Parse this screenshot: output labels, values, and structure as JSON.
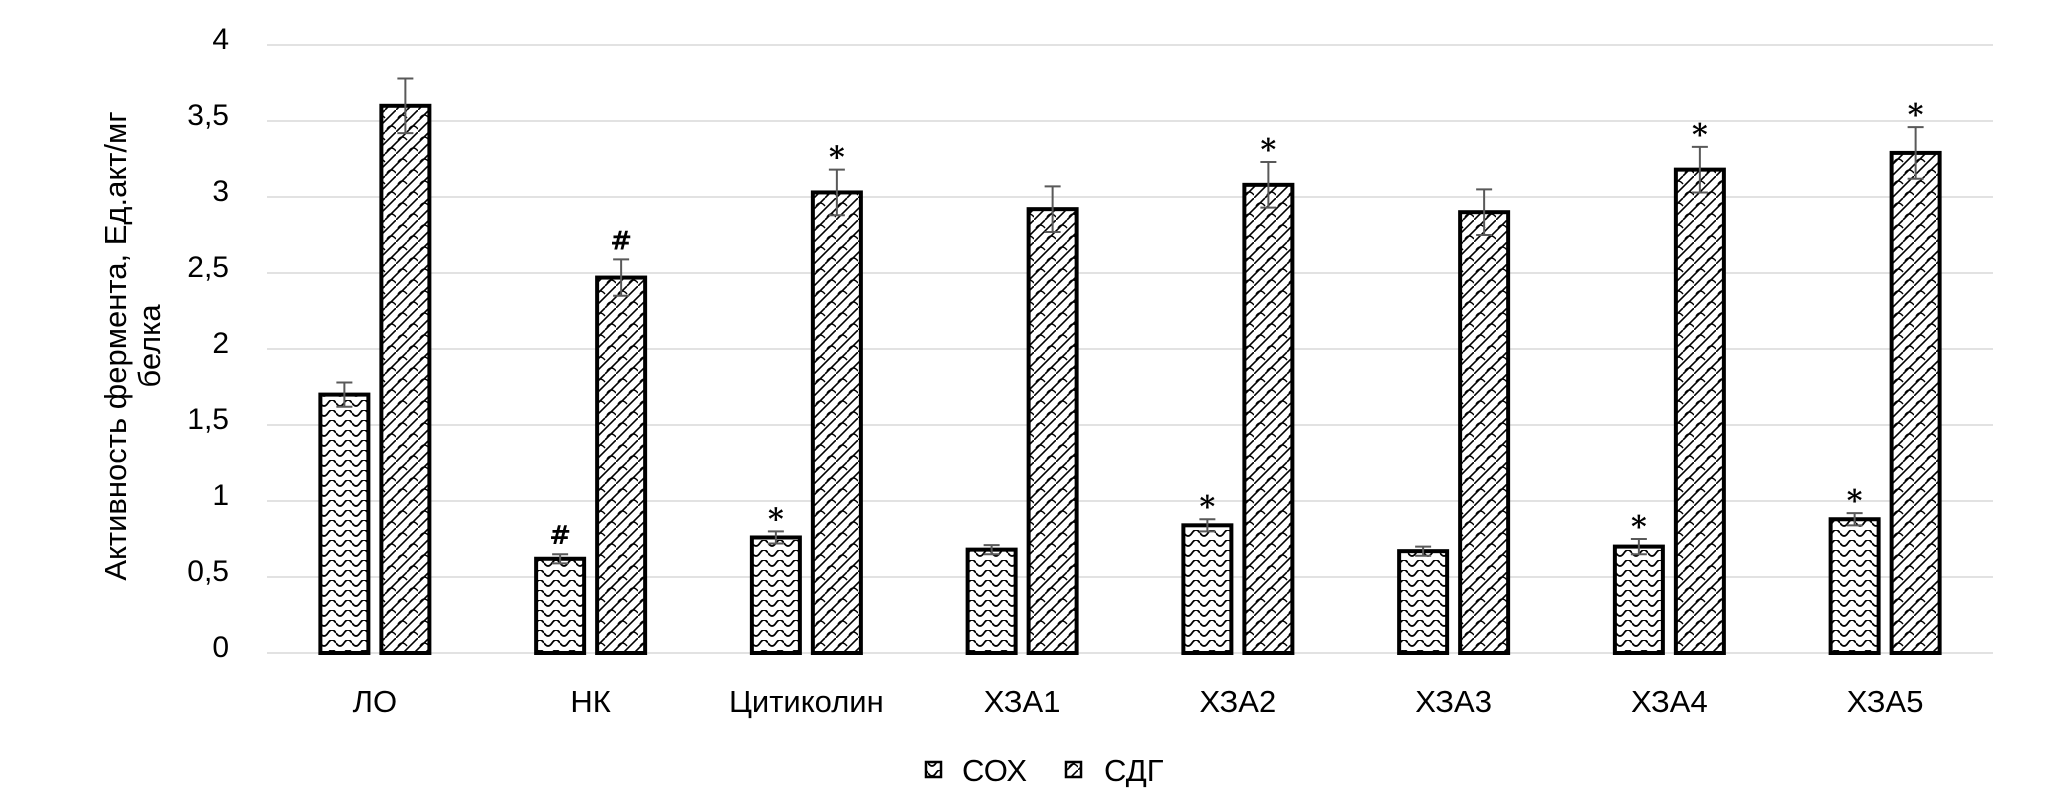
{
  "chart_data": {
    "type": "bar",
    "title": "",
    "xlabel": "",
    "ylabel_lines": [
      "Активность фермента, Ед.акт/мг",
      "белка"
    ],
    "ylim": [
      0,
      4
    ],
    "yticks": [
      0,
      0.5,
      1,
      1.5,
      2,
      2.5,
      3,
      3.5,
      4
    ],
    "ytick_labels": [
      "0",
      "0,5",
      "1",
      "1,5",
      "2",
      "2,5",
      "3",
      "3,5",
      "4"
    ],
    "grid": true,
    "legend_position": "bottom-center",
    "categories": [
      "ЛО",
      "НК",
      "Цитиколин",
      "ХЗА1",
      "ХЗА2",
      "ХЗА3",
      "ХЗА4",
      "ХЗА5"
    ],
    "series": [
      {
        "name": "СОХ",
        "pattern": "wave",
        "values": [
          1.7,
          0.62,
          0.76,
          0.68,
          0.84,
          0.67,
          0.7,
          0.88
        ],
        "errors": [
          0.08,
          0.03,
          0.04,
          0.03,
          0.04,
          0.03,
          0.05,
          0.04
        ],
        "markers": [
          "",
          "#",
          "*",
          "",
          "*",
          "",
          "*",
          "*"
        ]
      },
      {
        "name": "СДГ",
        "pattern": "diagonal-weave",
        "values": [
          3.6,
          2.47,
          3.03,
          2.92,
          3.08,
          2.9,
          3.18,
          3.29
        ],
        "errors": [
          0.18,
          0.12,
          0.15,
          0.15,
          0.15,
          0.15,
          0.15,
          0.17
        ],
        "markers": [
          "",
          "#",
          "*",
          "",
          "*",
          "",
          "*",
          "*"
        ]
      }
    ],
    "colors": {
      "bar_outline": "#000000",
      "bar_fill": "#ffffff",
      "pattern_ink": "#000000",
      "error_bar": "#595959",
      "gridline": "#d9d9d9"
    }
  }
}
